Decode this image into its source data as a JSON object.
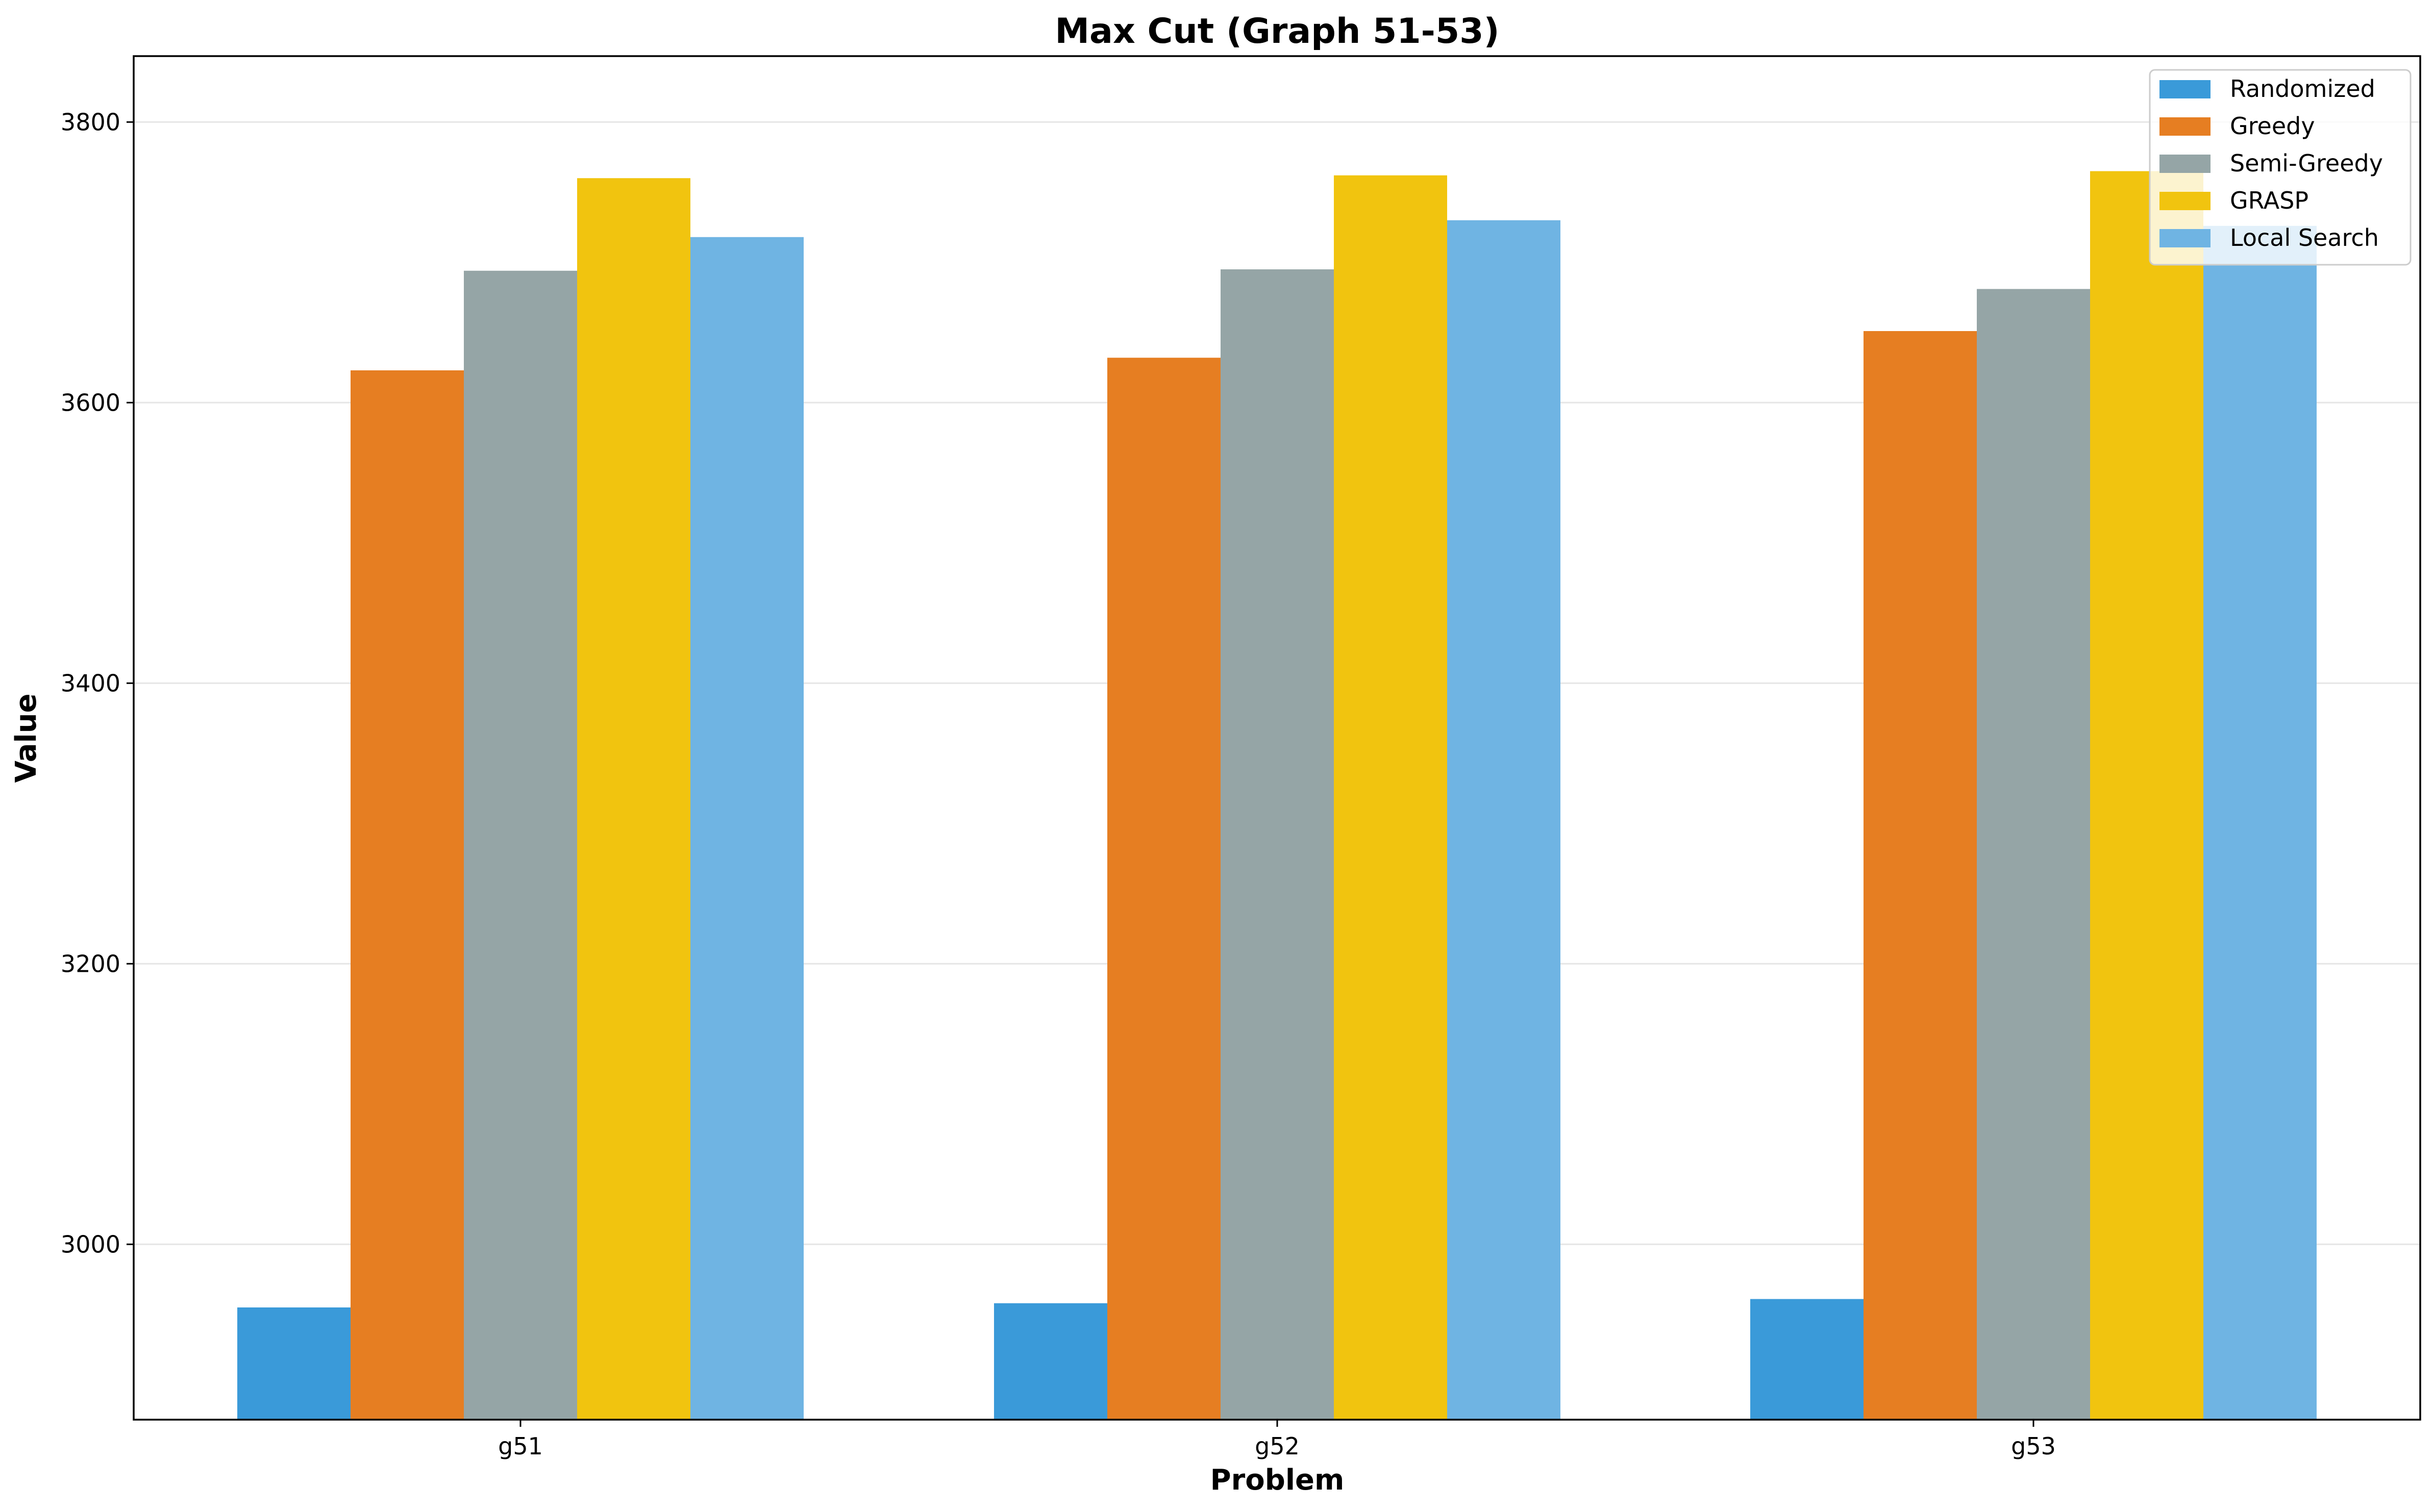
{
  "chart_data": {
    "type": "bar",
    "title": "Max Cut (Graph 51-53)",
    "xlabel": "Problem",
    "ylabel": "Value",
    "categories": [
      "g51",
      "g52",
      "g53"
    ],
    "ylim": [
      2875,
      3847
    ],
    "yticks": [
      3000,
      3200,
      3400,
      3600,
      3800
    ],
    "grid": "horizontal",
    "legend_position": "top-right",
    "series": [
      {
        "name": "Randomized",
        "color": "#3a9ad9",
        "values": [
          2955,
          2958,
          2961
        ]
      },
      {
        "name": "Greedy",
        "color": "#e67e22",
        "values": [
          3623,
          3632,
          3651
        ]
      },
      {
        "name": "Semi-Greedy",
        "color": "#95a5a6",
        "values": [
          3694,
          3695,
          3681
        ]
      },
      {
        "name": "GRASP",
        "color": "#f1c40f",
        "values": [
          3760,
          3762,
          3765
        ]
      },
      {
        "name": "Local Search",
        "color": "#6fb4e3",
        "values": [
          3718,
          3730,
          3726
        ]
      }
    ]
  }
}
